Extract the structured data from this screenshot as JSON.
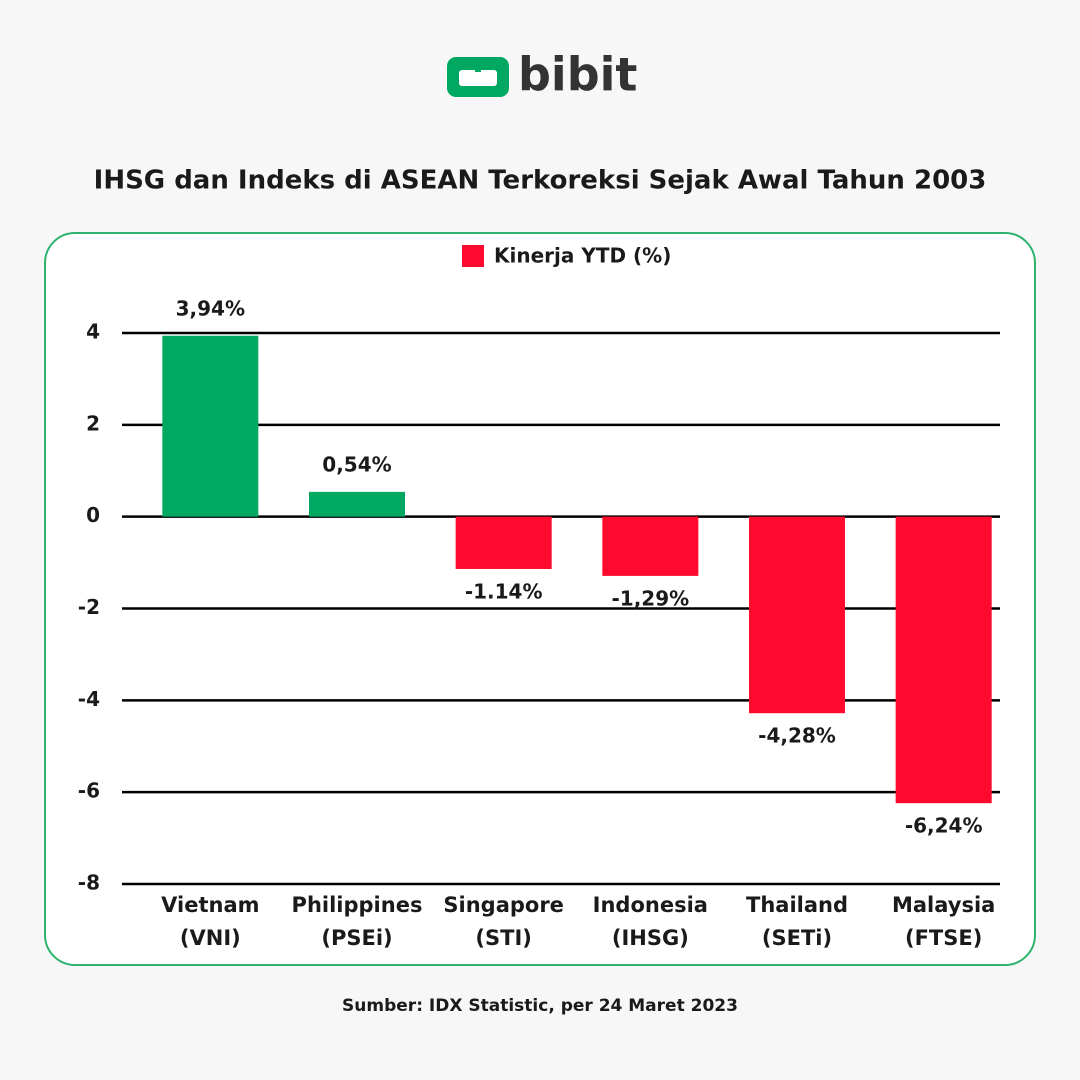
{
  "brand": "bibit",
  "source": "Sumber: IDX Statistic, per 24 Maret 2023",
  "chart_data": {
    "type": "bar",
    "title": "IHSG dan Indeks di ASEAN Terkoreksi Sejak Awal Tahun 2003",
    "categories": [
      [
        "Vietnam",
        "(VNI)"
      ],
      [
        "Philippines",
        "(PSEi)"
      ],
      [
        "Singapore",
        "(STI)"
      ],
      [
        "Indonesia",
        "(IHSG)"
      ],
      [
        "Thailand",
        "(SETi)"
      ],
      [
        "Malaysia",
        "(FTSE)"
      ]
    ],
    "series": [
      {
        "name": "Kinerja YTD (%)",
        "color": "#ff0a2e",
        "values": [
          3.94,
          0.54,
          -1.14,
          -1.29,
          -4.28,
          -6.24
        ],
        "value_labels": [
          "3,94%",
          "0,54%",
          "-1.14%",
          "-1,29%",
          "-4,28%",
          "-6,24%"
        ],
        "colors": [
          "#00a862",
          "#00a862",
          "#ff0a2e",
          "#ff0a2e",
          "#ff0a2e",
          "#ff0a2e"
        ]
      }
    ],
    "ylim": [
      -8,
      4
    ],
    "yticks": [
      4,
      2,
      0,
      -2,
      -4,
      -6,
      -8
    ],
    "grid": true
  }
}
